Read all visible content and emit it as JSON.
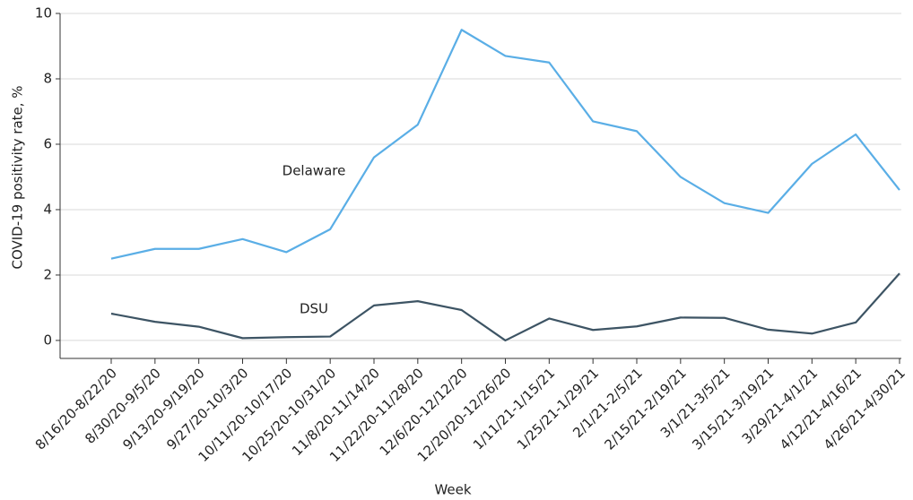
{
  "chart_data": {
    "type": "line",
    "x_label": "Week",
    "y_label": "COVID-19 positivity rate, %",
    "categories": [
      "8/16/20-8/22/20",
      "8/30/20-9/5/20",
      "9/13/20-9/19/20",
      "9/27/20-10/3/20",
      "10/11/20-10/17/20",
      "10/25/20-10/31/20",
      "11/8/20-11/14/20",
      "11/22/20-11/28/20",
      "12/6/20-12/12/20",
      "12/20/20-12/26/20",
      "1/11/21-1/15/21",
      "1/25/21-1/29/21",
      "2/1/21-2/5/21",
      "2/15/21-2/19/21",
      "3/1/21-3/5/21",
      "3/15/21-3/19/21",
      "3/29/21-4/1/21",
      "4/12/21-4/16/21",
      "4/26/21-4/30/21"
    ],
    "series": [
      {
        "name": "Delaware",
        "color": "#5aaee6",
        "values": [
          2.5,
          2.8,
          2.8,
          3.1,
          2.7,
          3.4,
          5.6,
          6.6,
          9.5,
          8.7,
          8.5,
          6.7,
          6.4,
          5.0,
          4.2,
          3.9,
          5.4,
          6.3,
          4.6
        ]
      },
      {
        "name": "DSU",
        "color": "#3d5464",
        "values": [
          0.82,
          0.57,
          0.42,
          0.07,
          0.1,
          0.12,
          1.07,
          1.2,
          0.93,
          0.0,
          0.67,
          0.32,
          0.43,
          0.7,
          0.69,
          0.33,
          0.21,
          0.55,
          2.05
        ]
      }
    ],
    "ylim": [
      -0.55,
      10
    ],
    "yticks": [
      0,
      2,
      4,
      6,
      8,
      10
    ],
    "grid": true
  }
}
